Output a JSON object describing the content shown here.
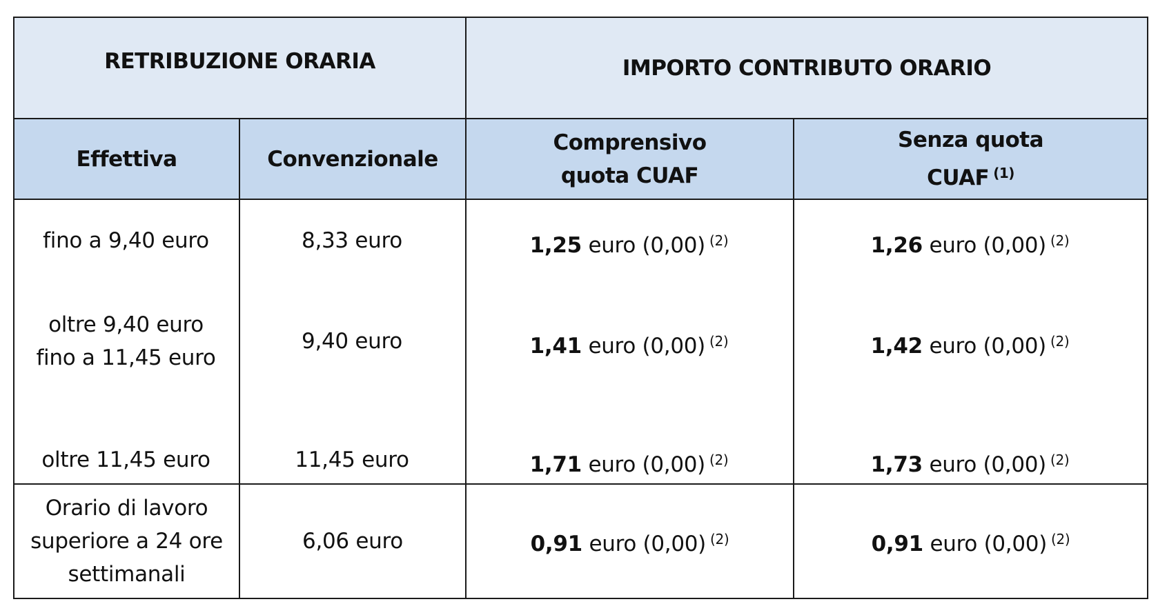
{
  "header": {
    "retribuzione": "RETRIBUZIONE ORARIA",
    "importo": "IMPORTO CONTRIBUTO ORARIO",
    "effettiva": "Effettiva",
    "convenzionale": "Convenzionale",
    "comprensivo_line1": "Comprensivo",
    "comprensivo_line2": "quota CUAF",
    "senza_line1": "Senza quota",
    "senza_line2": "CUAF",
    "senza_note": "(1)"
  },
  "rows": [
    {
      "effettiva": [
        "fino a 9,40 euro"
      ],
      "convenzionale": "8,33 euro",
      "comprensivo_value": "1,25",
      "comprensivo_rest": "euro (0,00)",
      "comprensivo_note": "(2)",
      "senza_value": "1,26",
      "senza_rest": "euro (0,00)",
      "senza_note": "(2)"
    },
    {
      "effettiva": [
        "oltre 9,40 euro",
        "fino a 11,45 euro"
      ],
      "convenzionale": "9,40 euro",
      "comprensivo_value": "1,41",
      "comprensivo_rest": "euro (0,00)",
      "comprensivo_note": "(2)",
      "senza_value": "1,42",
      "senza_rest": "euro (0,00)",
      "senza_note": "(2)"
    },
    {
      "effettiva": [
        "oltre 11,45 euro"
      ],
      "convenzionale": "11,45 euro",
      "comprensivo_value": "1,71",
      "comprensivo_rest": "euro (0,00)",
      "comprensivo_note": "(2)",
      "senza_value": "1,73",
      "senza_rest": "euro (0,00)",
      "senza_note": "(2)"
    },
    {
      "effettiva": [
        "Orario di lavoro",
        "superiore a 24 ore",
        "settimanali"
      ],
      "convenzionale": "6,06 euro",
      "comprensivo_value": "0,91",
      "comprensivo_rest": "euro (0,00)",
      "comprensivo_note": "(2)",
      "senza_value": "0,91",
      "senza_rest": "euro (0,00)",
      "senza_note": "(2)"
    }
  ]
}
